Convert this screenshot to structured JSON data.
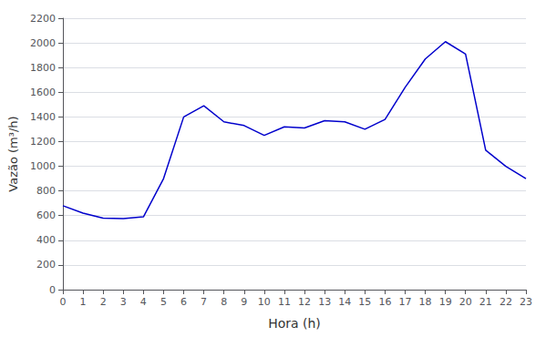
{
  "chart_data": {
    "type": "line",
    "xlabel": "Hora (h)",
    "ylabel": "Vazão (m³/h)",
    "x": [
      0,
      1,
      2,
      3,
      4,
      5,
      6,
      7,
      8,
      9,
      10,
      11,
      12,
      13,
      14,
      15,
      16,
      17,
      18,
      19,
      20,
      21,
      22,
      23
    ],
    "values": [
      680,
      620,
      580,
      575,
      590,
      900,
      1400,
      1490,
      1360,
      1330,
      1250,
      1320,
      1310,
      1370,
      1360,
      1300,
      1380,
      1640,
      1870,
      2010,
      1910,
      1130,
      1000,
      900
    ],
    "color": "#0000cc",
    "xlim": [
      0,
      23
    ],
    "ylim": [
      0,
      2200
    ],
    "xticks": [
      0,
      1,
      2,
      3,
      4,
      5,
      6,
      7,
      8,
      9,
      10,
      11,
      12,
      13,
      14,
      15,
      16,
      17,
      18,
      19,
      20,
      21,
      22,
      23
    ],
    "yticks": [
      0,
      200,
      400,
      600,
      800,
      1000,
      1200,
      1400,
      1600,
      1800,
      2000,
      2200
    ],
    "grid": true
  }
}
